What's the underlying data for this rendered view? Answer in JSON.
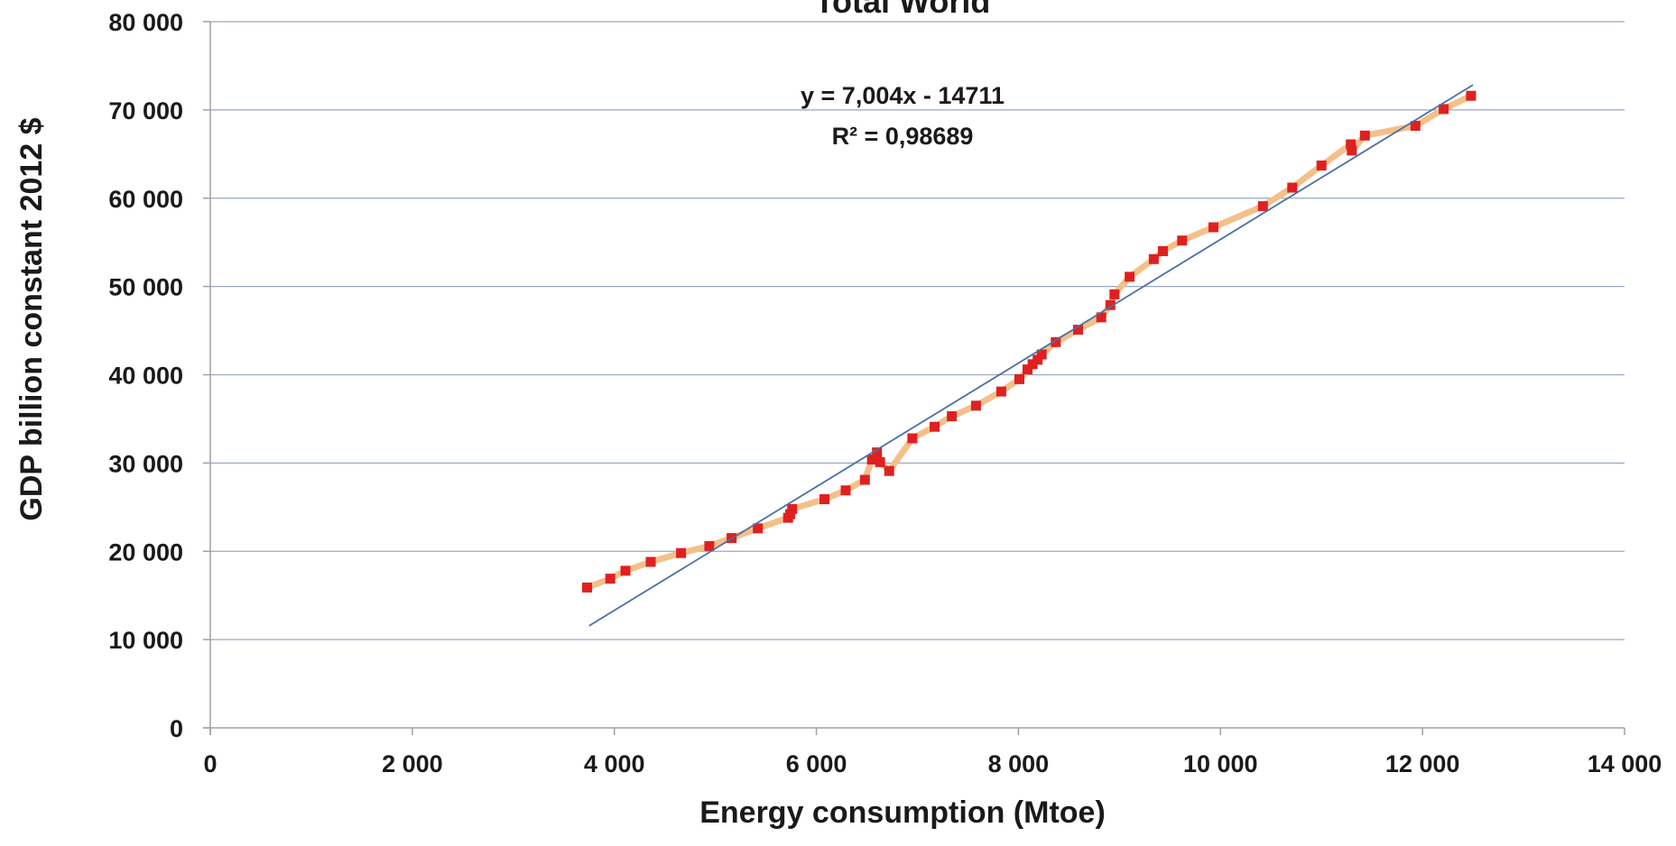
{
  "chart_data": {
    "type": "scatter",
    "title": "Total World",
    "xlabel": "Energy consumption (Mtoe)",
    "ylabel": "GDP billion constant 2012 $",
    "xlim": [
      0,
      14000
    ],
    "ylim": [
      0,
      80000
    ],
    "x_ticks": [
      0,
      2000,
      4000,
      6000,
      8000,
      10000,
      12000,
      14000
    ],
    "x_tick_labels": [
      "0",
      "2 000",
      "4 000",
      "6 000",
      "8 000",
      "10 000",
      "12 000",
      "14 000"
    ],
    "y_ticks": [
      0,
      10000,
      20000,
      30000,
      40000,
      50000,
      60000,
      70000,
      80000
    ],
    "y_tick_labels": [
      "0",
      "10 000",
      "20 000",
      "30 000",
      "40 000",
      "50 000",
      "60 000",
      "70 000",
      "80 000"
    ],
    "grid": "horizontal",
    "trendline": {
      "equation": "y = 7,004x - 14711",
      "r_squared": "R² = 0,98689",
      "slope": 7.004,
      "intercept": -14711,
      "x_range": [
        3750,
        12500
      ]
    },
    "colors": {
      "points": "#e02020",
      "connector": "#f4c08a",
      "trendline": "#4a6fa5",
      "grid": "#9aa7c4",
      "axis": "#a0a0a0"
    },
    "series": [
      {
        "points": [
          [
            3730,
            15900
          ],
          [
            3960,
            16900
          ],
          [
            4110,
            17800
          ],
          [
            4360,
            18800
          ],
          [
            4660,
            19800
          ],
          [
            4940,
            20600
          ],
          [
            5160,
            21500
          ],
          [
            5420,
            22600
          ],
          [
            5720,
            23800
          ],
          [
            5740,
            24200
          ],
          [
            5760,
            24800
          ],
          [
            6080,
            25900
          ],
          [
            6290,
            26900
          ],
          [
            6480,
            28100
          ],
          [
            6550,
            30400
          ],
          [
            6600,
            31200
          ],
          [
            6630,
            30100
          ],
          [
            6720,
            29100
          ],
          [
            6950,
            32800
          ],
          [
            7170,
            34100
          ],
          [
            7340,
            35300
          ],
          [
            7580,
            36500
          ],
          [
            7830,
            38100
          ],
          [
            8010,
            39500
          ],
          [
            8090,
            40600
          ],
          [
            8140,
            41200
          ],
          [
            8190,
            41700
          ],
          [
            8230,
            42300
          ],
          [
            8370,
            43700
          ],
          [
            8590,
            45100
          ],
          [
            8820,
            46500
          ],
          [
            8910,
            47900
          ],
          [
            8950,
            49100
          ],
          [
            9100,
            51100
          ],
          [
            9340,
            53100
          ],
          [
            9430,
            54000
          ],
          [
            9620,
            55200
          ],
          [
            9930,
            56700
          ],
          [
            10420,
            59100
          ],
          [
            10710,
            61200
          ],
          [
            11000,
            63700
          ],
          [
            11290,
            66100
          ],
          [
            11300,
            65400
          ],
          [
            11430,
            67100
          ],
          [
            11930,
            68200
          ],
          [
            12210,
            70100
          ],
          [
            12480,
            71600
          ]
        ]
      }
    ]
  }
}
